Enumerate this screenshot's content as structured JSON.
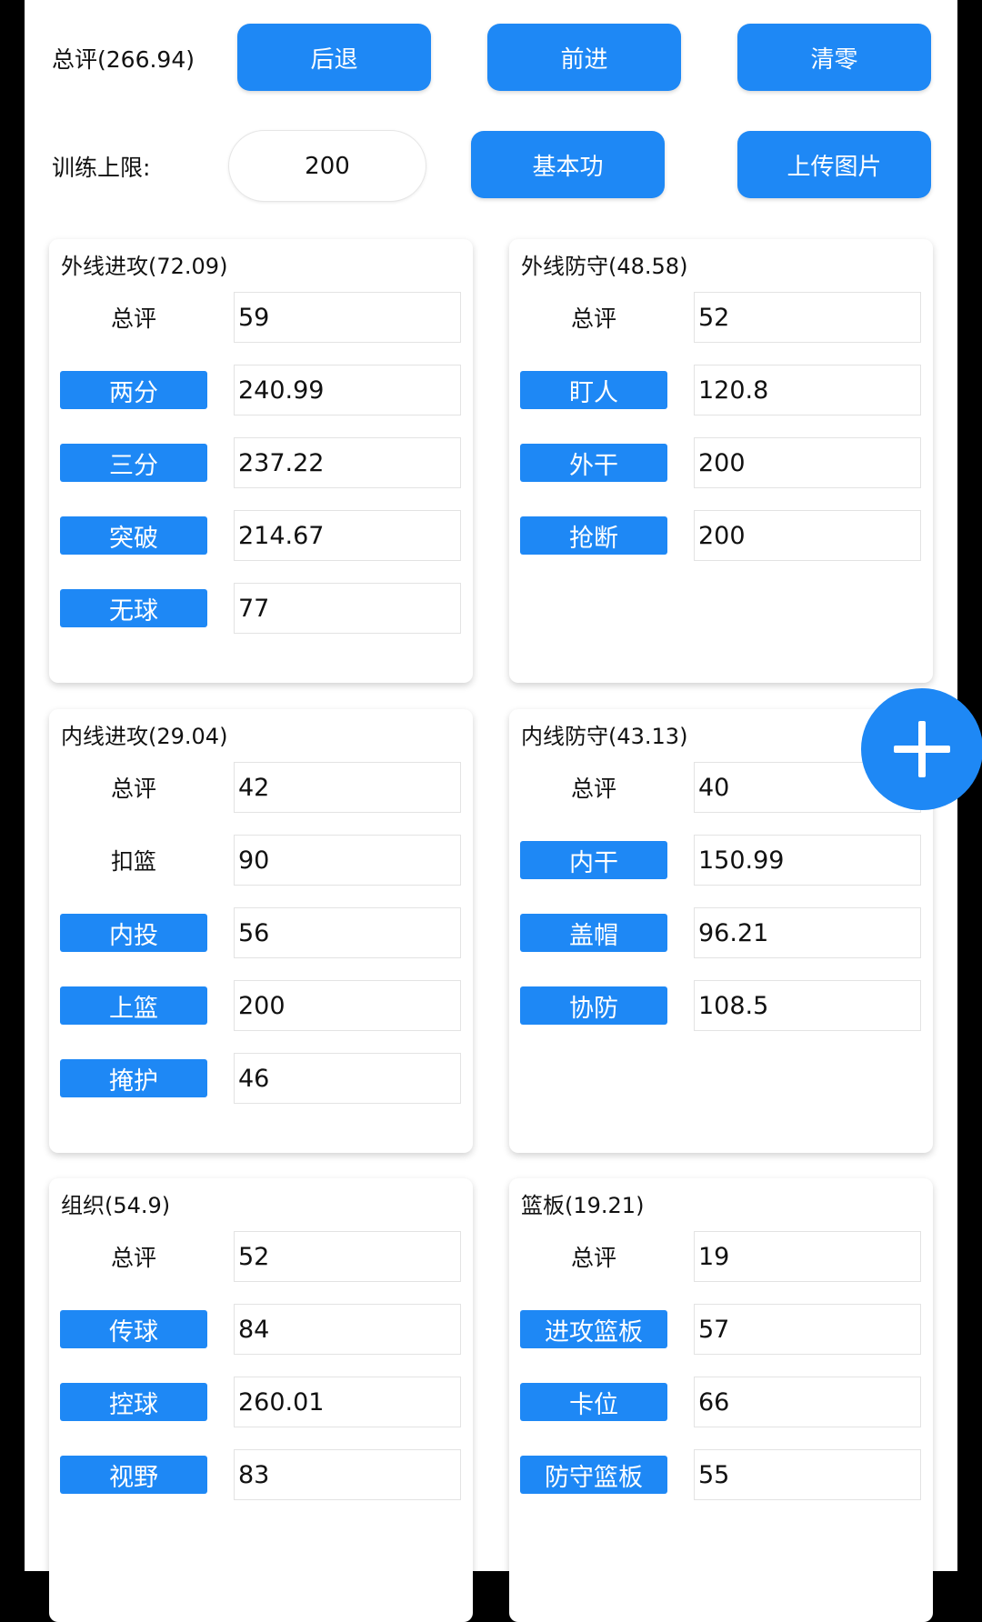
{
  "header": {
    "total_label": "总评(266.94)",
    "back_label": "后退",
    "forward_label": "前进",
    "reset_label": "清零",
    "limit_label": "训练上限:",
    "limit_value": "200",
    "basics_label": "基本功",
    "upload_label": "上传图片"
  },
  "cards": [
    {
      "title": "外线进攻(72.09)",
      "rows": [
        {
          "label": "总评",
          "value": "59"
        },
        {
          "label": "两分",
          "value": "240.99"
        },
        {
          "label": "三分",
          "value": "237.22"
        },
        {
          "label": "突破",
          "value": "214.67"
        },
        {
          "label": "无球",
          "value": "77"
        }
      ]
    },
    {
      "title": "外线防守(48.58)",
      "rows": [
        {
          "label": "总评",
          "value": "52"
        },
        {
          "label": "盯人",
          "value": "120.8"
        },
        {
          "label": "外干",
          "value": "200"
        },
        {
          "label": "抢断",
          "value": "200"
        }
      ]
    },
    {
      "title": "内线进攻(29.04)",
      "rows": [
        {
          "label": "总评",
          "value": "42"
        },
        {
          "label": "扣篮",
          "value": "90"
        },
        {
          "label": "内投",
          "value": "56"
        },
        {
          "label": "上篮",
          "value": "200"
        },
        {
          "label": "掩护",
          "value": "46"
        }
      ]
    },
    {
      "title": "内线防守(43.13)",
      "rows": [
        {
          "label": "总评",
          "value": "40"
        },
        {
          "label": "内干",
          "value": "150.99"
        },
        {
          "label": "盖帽",
          "value": "96.21"
        },
        {
          "label": "协防",
          "value": "108.5"
        }
      ]
    },
    {
      "title": "组织(54.9)",
      "rows": [
        {
          "label": "总评",
          "value": "52"
        },
        {
          "label": "传球",
          "value": "84"
        },
        {
          "label": "控球",
          "value": "260.01"
        },
        {
          "label": "视野",
          "value": "83"
        }
      ]
    },
    {
      "title": "篮板(19.21)",
      "rows": [
        {
          "label": "总评",
          "value": "19"
        },
        {
          "label": "进攻篮板",
          "value": "57"
        },
        {
          "label": "卡位",
          "value": "66"
        },
        {
          "label": "防守篮板",
          "value": "55"
        }
      ]
    }
  ],
  "icons": {
    "fab": "plus-icon"
  },
  "colors": {
    "accent": "#1e88f5",
    "background": "#ffffff"
  }
}
